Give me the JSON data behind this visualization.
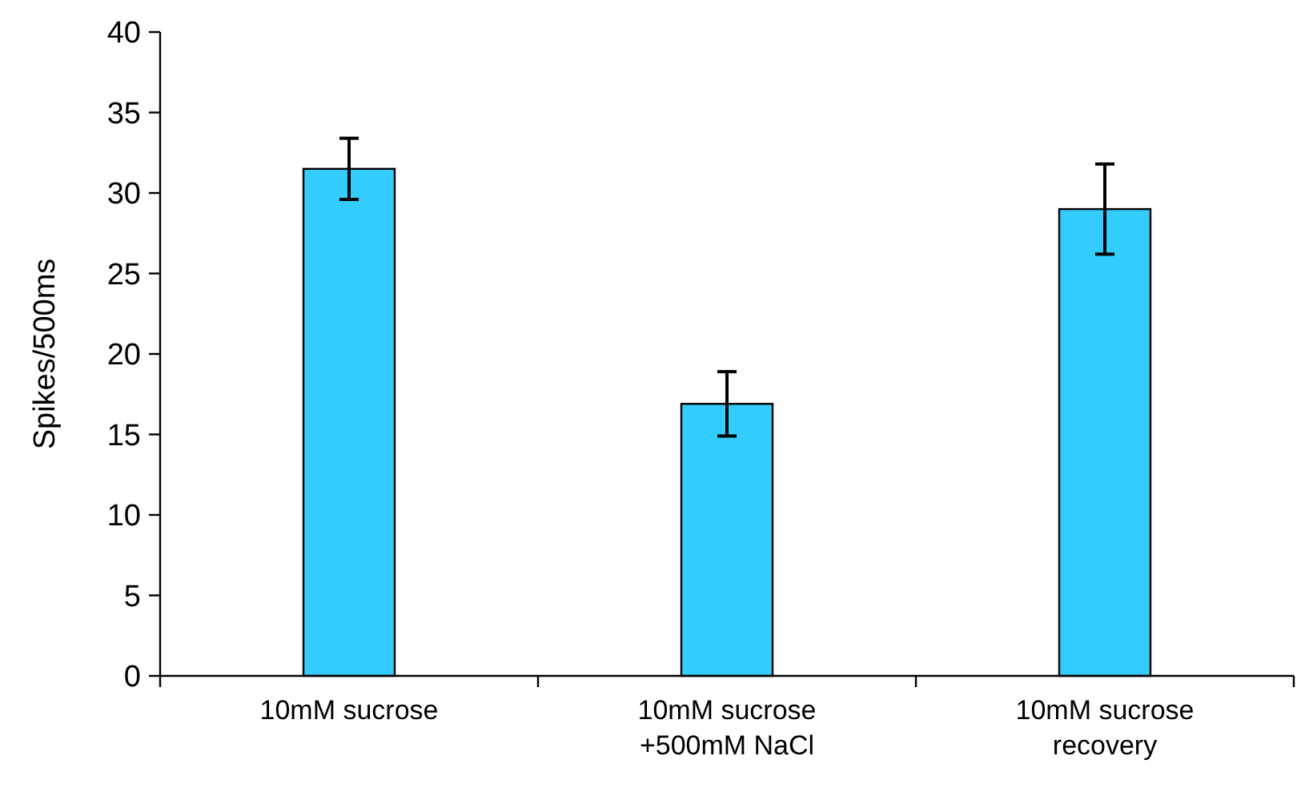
{
  "chart_data": {
    "type": "bar",
    "ylabel": "Spikes/500ms",
    "categories": [
      "10mM sucrose",
      "10mM sucrose\n+500mM NaCl",
      "10mM sucrose\nrecovery"
    ],
    "values": [
      31.5,
      16.9,
      29.0
    ],
    "errors": [
      1.9,
      2.0,
      2.8
    ],
    "color": "#33ccff",
    "ylim": [
      0,
      40
    ],
    "yticks": [
      0,
      5,
      10,
      15,
      20,
      25,
      30,
      35,
      40
    ],
    "grid": false
  }
}
